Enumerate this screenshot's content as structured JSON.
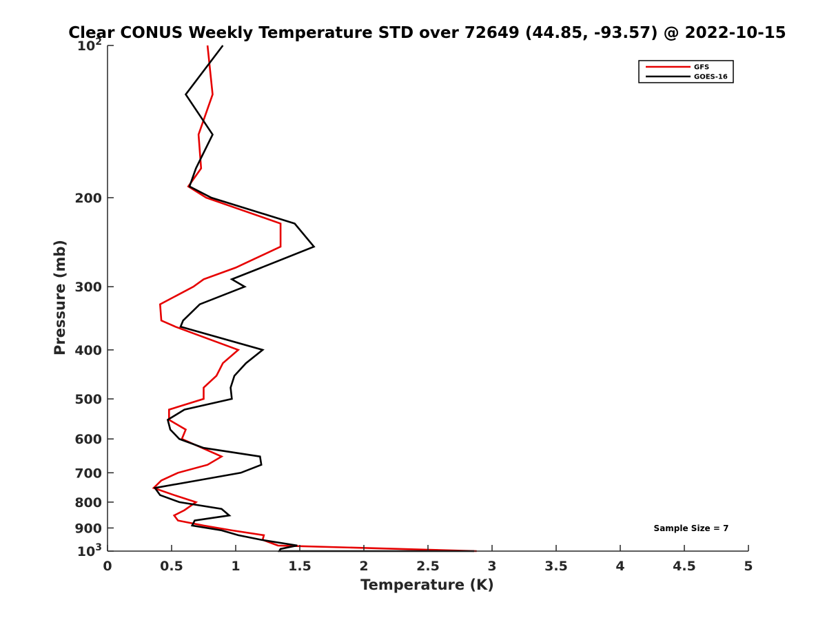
{
  "chart_data": {
    "type": "line",
    "title": "Clear CONUS Weekly Temperature STD over 72649 (44.85, -93.57) @ 2022-10-15",
    "xlabel": "Temperature (K)",
    "ylabel": "Pressure (mb)",
    "xlim": [
      0,
      5
    ],
    "ylim": [
      1000,
      100
    ],
    "y_scale": "log",
    "y_reversed": true,
    "x_ticks": [
      "0",
      "0.5",
      "1",
      "1.5",
      "2",
      "2.5",
      "3",
      "3.5",
      "4",
      "4.5",
      "5"
    ],
    "y_ticks": [
      {
        "value": 100,
        "base": "10",
        "exp": "2"
      },
      {
        "value": 200,
        "label": "200"
      },
      {
        "value": 300,
        "label": "300"
      },
      {
        "value": 400,
        "label": "400"
      },
      {
        "value": 500,
        "label": "500"
      },
      {
        "value": 600,
        "label": "600"
      },
      {
        "value": 700,
        "label": "700"
      },
      {
        "value": 800,
        "label": "800"
      },
      {
        "value": 900,
        "label": "900"
      },
      {
        "value": 1000,
        "base": "10",
        "exp": "3"
      }
    ],
    "grid": false,
    "legend_position": "top-right",
    "annotation": "Sample Size = 7",
    "series": [
      {
        "name": "GFS",
        "color": "#e60000",
        "points": [
          [
            0.78,
            100
          ],
          [
            0.82,
            125
          ],
          [
            0.71,
            150
          ],
          [
            0.73,
            175
          ],
          [
            0.63,
            190
          ],
          [
            0.77,
            200
          ],
          [
            1.35,
            225
          ],
          [
            1.35,
            250
          ],
          [
            1.0,
            275
          ],
          [
            0.75,
            290
          ],
          [
            0.67,
            300
          ],
          [
            0.41,
            325
          ],
          [
            0.42,
            350
          ],
          [
            0.53,
            360
          ],
          [
            1.02,
            400
          ],
          [
            0.9,
            425
          ],
          [
            0.85,
            450
          ],
          [
            0.75,
            475
          ],
          [
            0.75,
            500
          ],
          [
            0.48,
            525
          ],
          [
            0.48,
            550
          ],
          [
            0.61,
            575
          ],
          [
            0.58,
            600
          ],
          [
            0.89,
            650
          ],
          [
            0.78,
            675
          ],
          [
            0.55,
            700
          ],
          [
            0.42,
            725
          ],
          [
            0.36,
            750
          ],
          [
            0.52,
            775
          ],
          [
            0.69,
            800
          ],
          [
            0.6,
            830
          ],
          [
            0.52,
            850
          ],
          [
            0.55,
            870
          ],
          [
            0.75,
            890
          ],
          [
            0.97,
            910
          ],
          [
            1.22,
            930
          ],
          [
            1.21,
            950
          ],
          [
            1.33,
            975
          ],
          [
            2.88,
            1000
          ]
        ]
      },
      {
        "name": "GOES-16",
        "color": "#000000",
        "points": [
          [
            0.9,
            100
          ],
          [
            0.61,
            125
          ],
          [
            0.82,
            150
          ],
          [
            0.69,
            175
          ],
          [
            0.64,
            190
          ],
          [
            0.81,
            200
          ],
          [
            1.46,
            225
          ],
          [
            1.61,
            250
          ],
          [
            1.2,
            275
          ],
          [
            0.97,
            290
          ],
          [
            1.07,
            300
          ],
          [
            0.72,
            325
          ],
          [
            0.59,
            350
          ],
          [
            0.57,
            360
          ],
          [
            1.21,
            400
          ],
          [
            1.08,
            425
          ],
          [
            0.99,
            450
          ],
          [
            0.96,
            475
          ],
          [
            0.97,
            500
          ],
          [
            0.6,
            525
          ],
          [
            0.47,
            550
          ],
          [
            0.49,
            575
          ],
          [
            0.56,
            600
          ],
          [
            0.75,
            625
          ],
          [
            1.19,
            650
          ],
          [
            1.2,
            675
          ],
          [
            1.04,
            700
          ],
          [
            0.7,
            725
          ],
          [
            0.37,
            750
          ],
          [
            0.41,
            775
          ],
          [
            0.56,
            800
          ],
          [
            0.89,
            825
          ],
          [
            0.95,
            850
          ],
          [
            0.68,
            870
          ],
          [
            0.66,
            890
          ],
          [
            0.89,
            910
          ],
          [
            1.02,
            930
          ],
          [
            1.2,
            950
          ],
          [
            1.48,
            975
          ],
          [
            1.35,
            990
          ],
          [
            1.34,
            1000
          ],
          [
            2.86,
            1000
          ]
        ]
      }
    ]
  }
}
